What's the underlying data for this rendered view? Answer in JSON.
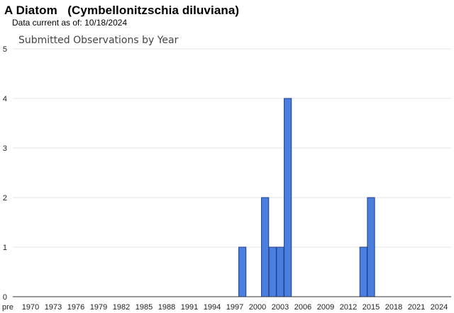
{
  "header": {
    "common_name": "A Diatom",
    "scientific_name": "(Cymbellonitzschia diluviana)",
    "data_current_label": "Data current as of:",
    "data_current_date": "10/18/2024"
  },
  "chart_data": {
    "type": "bar",
    "title": "Submitted Observations by Year",
    "xlabel": "",
    "ylabel": "",
    "ylim": [
      0,
      5
    ],
    "yticks": [
      0,
      1,
      2,
      3,
      4,
      5
    ],
    "grid": true,
    "legend": "none",
    "x_tick_labels": [
      "pre",
      "1970",
      "1973",
      "1976",
      "1979",
      "1982",
      "1985",
      "1988",
      "1991",
      "1994",
      "1997",
      "2000",
      "2003",
      "2006",
      "2009",
      "2012",
      "2015",
      "2018",
      "2021",
      "2024"
    ],
    "categories": [
      "1998",
      "2001",
      "2002",
      "2003",
      "2004",
      "2014",
      "2015"
    ],
    "values": [
      1,
      2,
      1,
      1,
      4,
      1,
      2
    ],
    "colors": {
      "bar_fill": "#4a7fe0",
      "bar_stroke": "#1f3f8c",
      "grid": "#e3e3e3",
      "axis": "#333333"
    }
  }
}
